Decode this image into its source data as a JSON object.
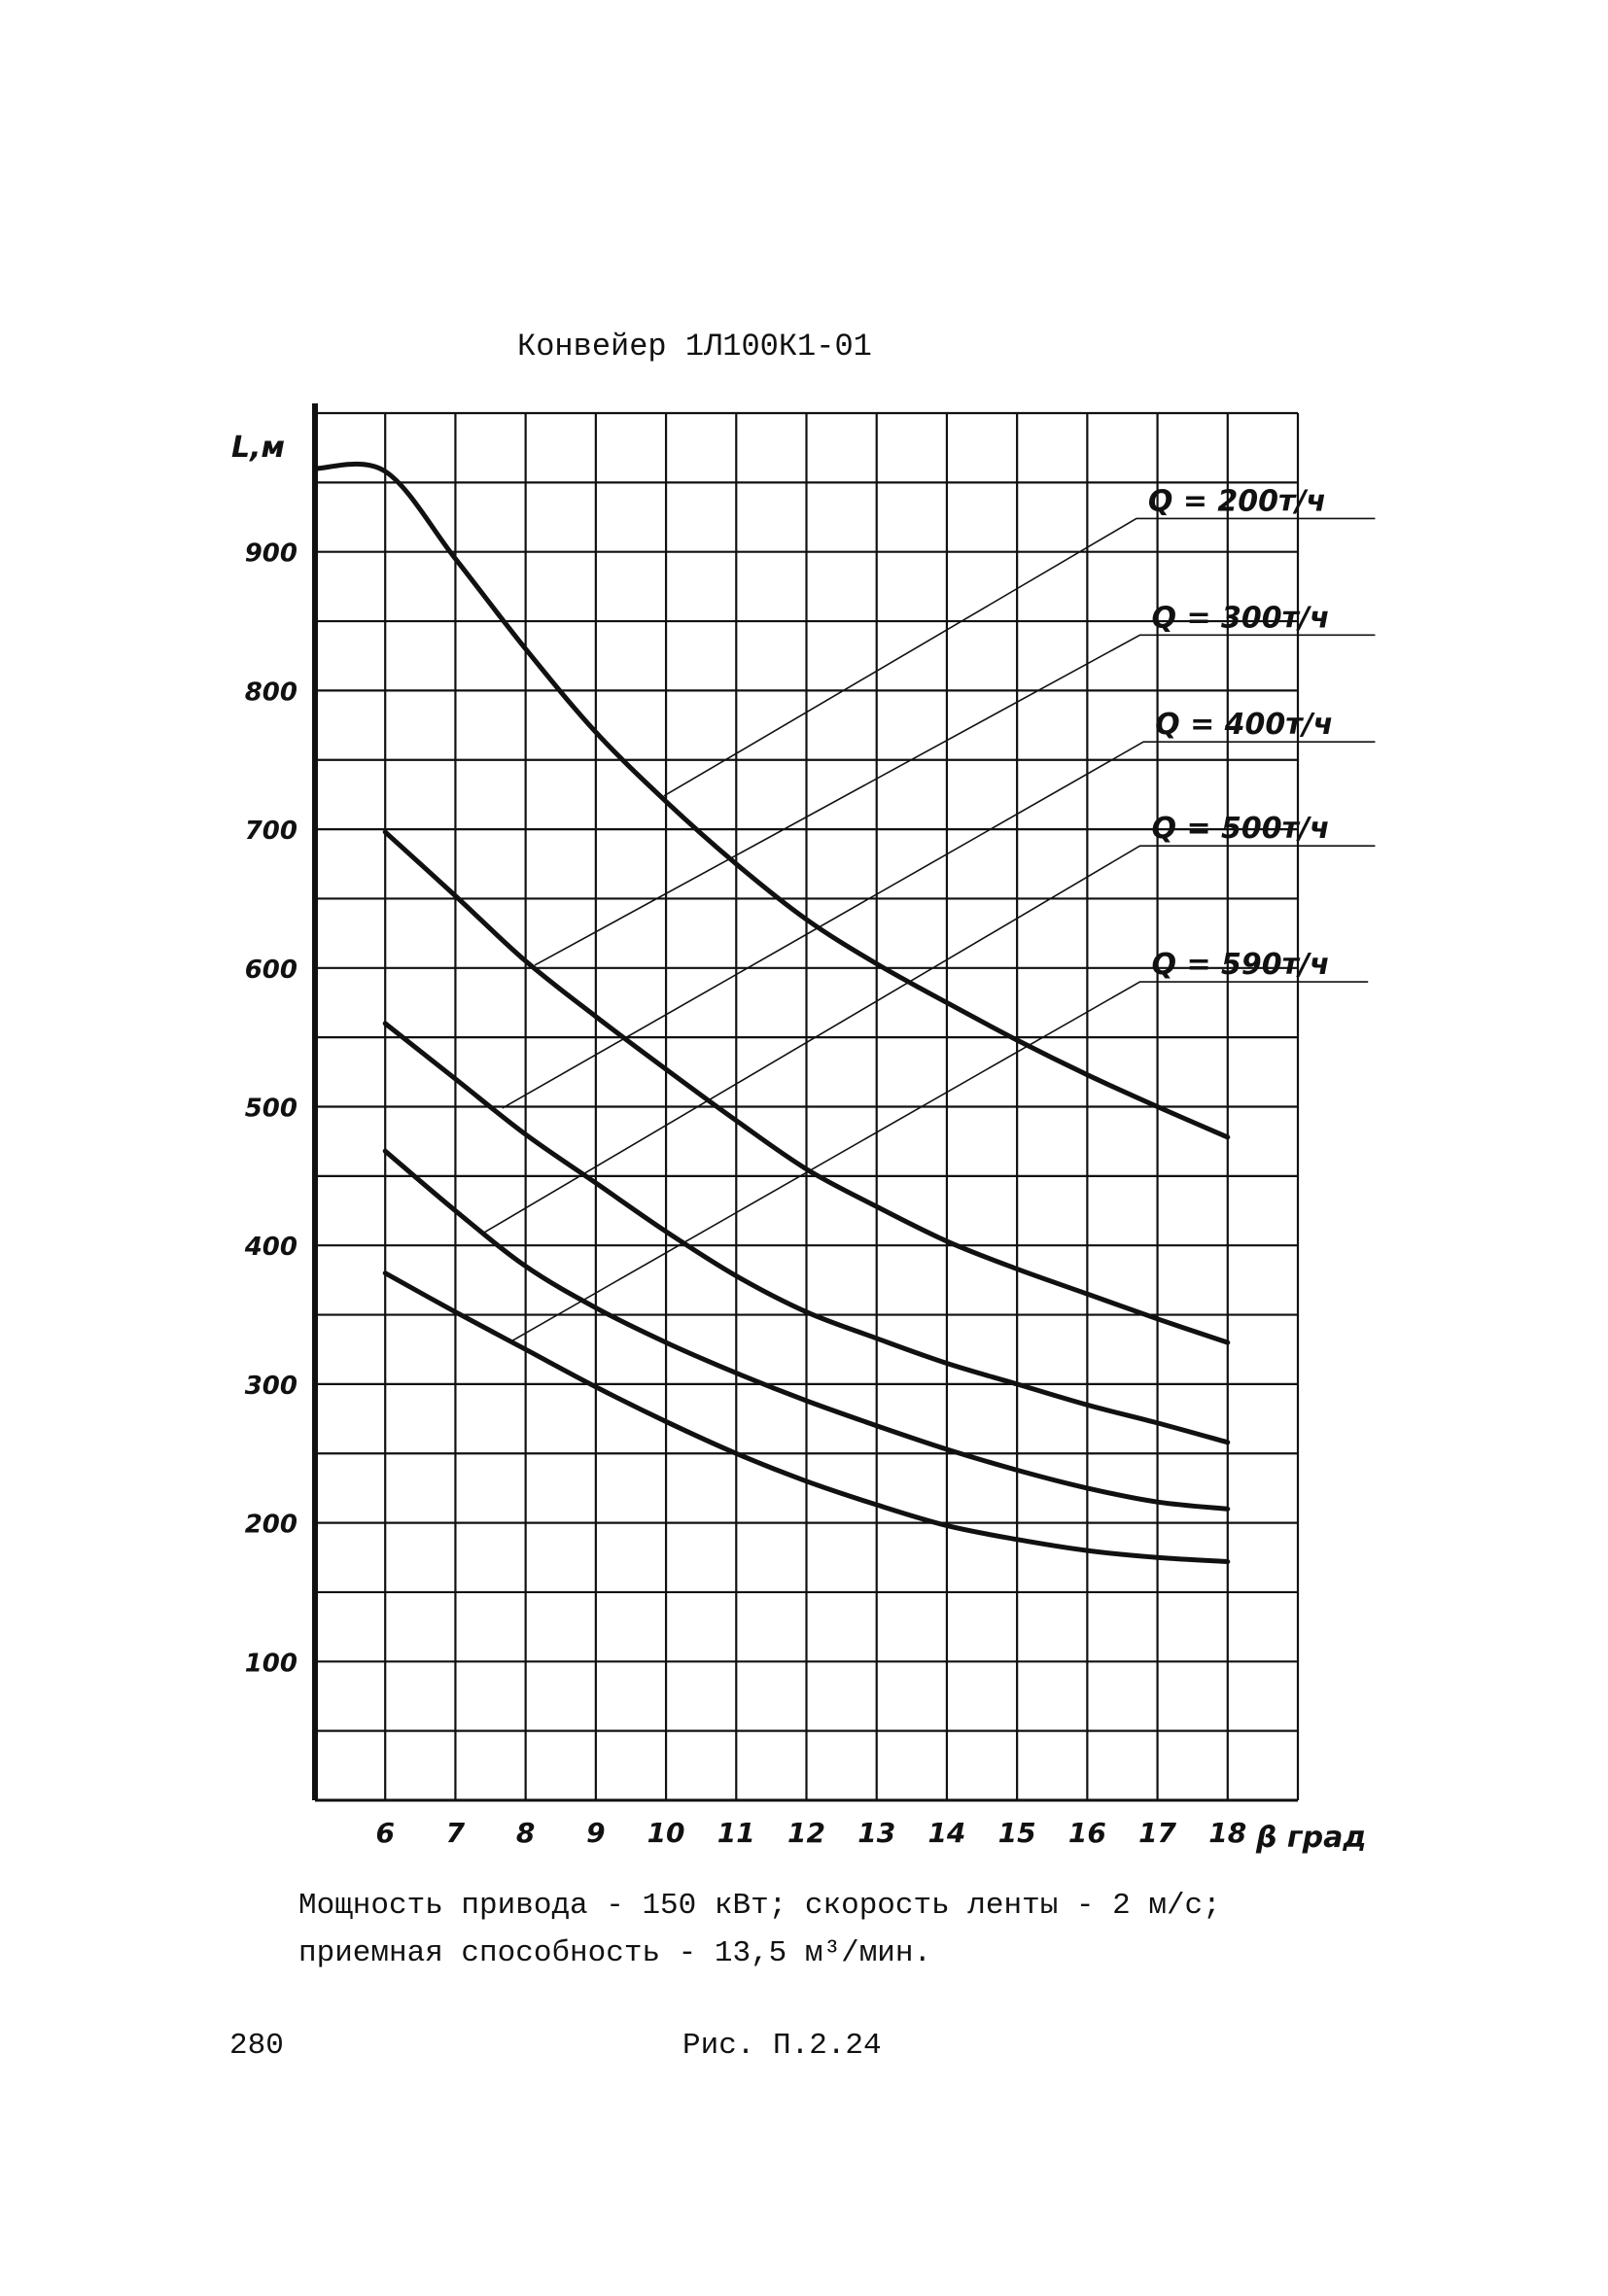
{
  "document": {
    "title": "Конвейер 1Л100К1-01",
    "footnote_line1": "Мощность привода - 150 кВт; скорость ленты - 2 м/с;",
    "footnote_line2": "приемная способность - 13,5 м³/мин.",
    "page_number": "280",
    "caption": "Рис. П.2.24"
  },
  "chart_data": {
    "type": "line",
    "title": "Конвейер 1Л100К1-01",
    "xlabel": "β град",
    "ylabel": "L,м",
    "xlim": [
      5,
      19
    ],
    "ylim": [
      0,
      1000
    ],
    "grid": true,
    "x_ticks": [
      6,
      7,
      8,
      9,
      10,
      11,
      12,
      13,
      14,
      15,
      16,
      17,
      18
    ],
    "x_tick_labels": [
      "6",
      "7",
      "8",
      "9",
      "10",
      "11",
      "12",
      "13",
      "14",
      "15",
      "16",
      "17",
      "18"
    ],
    "y_ticks": [
      100,
      200,
      300,
      400,
      500,
      600,
      700,
      800,
      900
    ],
    "y_tick_labels": [
      "100",
      "200",
      "300",
      "400",
      "500",
      "600",
      "700",
      "800",
      "900"
    ],
    "series": [
      {
        "name": "Q = 200т/ч",
        "x": [
          5,
          6,
          7,
          8,
          9,
          10,
          11,
          12,
          13,
          14,
          15,
          16,
          17,
          18
        ],
        "values": [
          960,
          958,
          895,
          830,
          770,
          720,
          675,
          635,
          603,
          575,
          548,
          523,
          500,
          478
        ],
        "leader": {
          "from": [
            9.97,
            724
          ],
          "to": [
            16.7,
            924
          ],
          "end_x": 20.1
        }
      },
      {
        "name": "Q = 300т/ч",
        "x": [
          6,
          7,
          8,
          9,
          10,
          11,
          12,
          13,
          14,
          15,
          16,
          17,
          18
        ],
        "values": [
          698,
          652,
          605,
          565,
          527,
          490,
          455,
          428,
          403,
          383,
          365,
          347,
          330
        ],
        "leader": {
          "from": [
            8.13,
            602
          ],
          "to": [
            16.75,
            840
          ],
          "end_x": 20.1
        }
      },
      {
        "name": "Q = 400т/ч",
        "x": [
          6,
          7,
          8,
          9,
          10,
          11,
          12,
          13,
          14,
          15,
          16,
          17,
          18
        ],
        "values": [
          560,
          520,
          480,
          445,
          410,
          378,
          352,
          333,
          315,
          300,
          285,
          272,
          258
        ],
        "leader": {
          "from": [
            7.67,
            499
          ],
          "to": [
            16.8,
            763
          ],
          "end_x": 20.1
        }
      },
      {
        "name": "Q = 500т/ч",
        "x": [
          6,
          7,
          8,
          9,
          10,
          11,
          12,
          13,
          14,
          15,
          16,
          17,
          18
        ],
        "values": [
          468,
          425,
          385,
          355,
          330,
          308,
          288,
          270,
          253,
          238,
          225,
          215,
          210
        ],
        "leader": {
          "from": [
            7.4,
            409
          ],
          "to": [
            16.75,
            688
          ],
          "end_x": 20.1
        }
      },
      {
        "name": "Q = 590т/ч",
        "x": [
          6,
          7,
          8,
          9,
          10,
          11,
          12,
          13,
          14,
          15,
          16,
          17,
          18
        ],
        "values": [
          380,
          352,
          325,
          298,
          273,
          250,
          230,
          213,
          198,
          188,
          180,
          175,
          172
        ],
        "leader": {
          "from": [
            7.8,
            331
          ],
          "to": [
            16.75,
            590
          ],
          "end_x": 20.0
        }
      }
    ]
  }
}
